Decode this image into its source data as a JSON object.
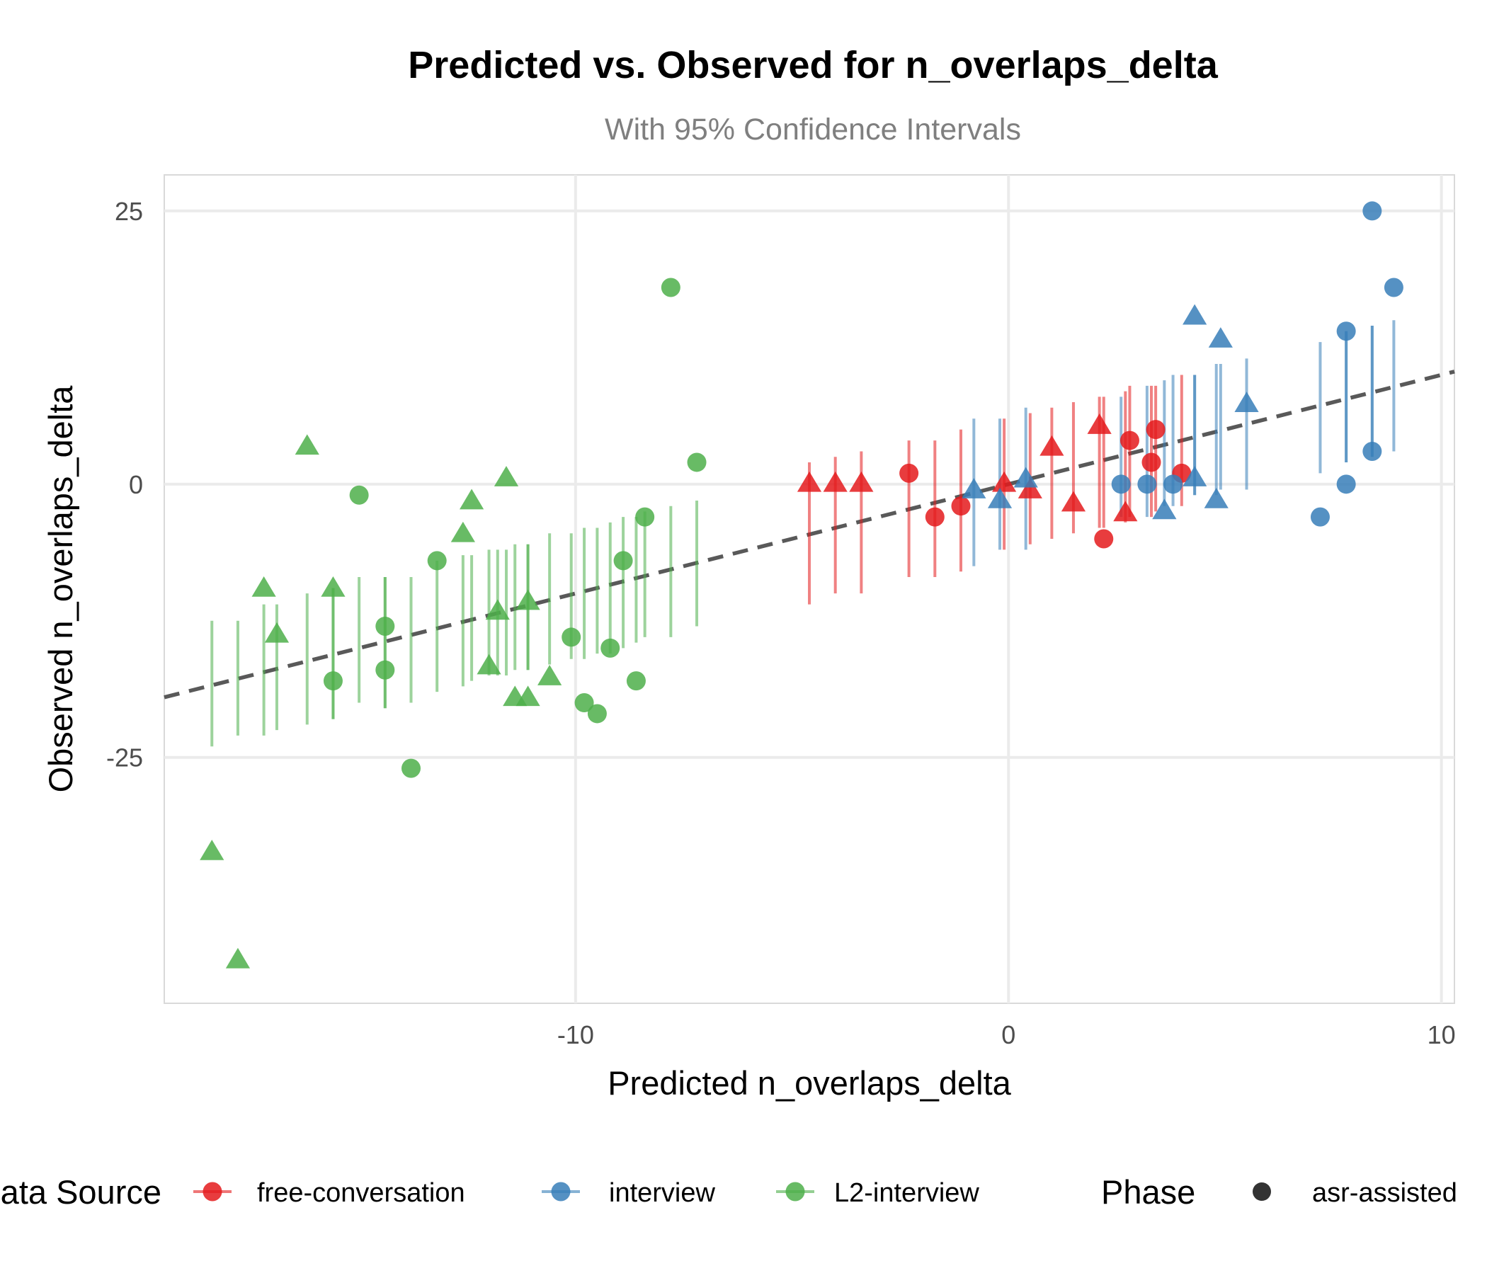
{
  "chart_data": {
    "type": "scatter",
    "title": "Predicted vs. Observed for n_overlaps_delta",
    "subtitle": "With 95% Confidence Intervals",
    "xlabel": "Predicted n_overlaps_delta",
    "ylabel": "Observed n_overlaps_delta",
    "xlim": [
      -19.5,
      10.3
    ],
    "ylim": [
      -47.5,
      28.3
    ],
    "x_ticks": [
      {
        "value": -10,
        "label": "-10"
      },
      {
        "value": 0,
        "label": "0"
      },
      {
        "value": 10,
        "label": "10"
      }
    ],
    "y_ticks": [
      {
        "value": 25,
        "label": "25"
      },
      {
        "value": 0,
        "label": "0"
      },
      {
        "value": -25,
        "label": "-25"
      }
    ],
    "grid": true,
    "reference_line": {
      "style": "dashed",
      "color": "#595959",
      "from": [
        -19.5,
        -19.5
      ],
      "to": [
        10.3,
        10.3
      ]
    },
    "legend": {
      "position": "bottom",
      "groups": [
        {
          "title": "Data Source",
          "items": [
            {
              "label": "free-conversation",
              "color": "#E41A1C"
            },
            {
              "label": "interview",
              "color": "#377EB8"
            },
            {
              "label": "L2-interview",
              "color": "#4DAF4A"
            }
          ]
        },
        {
          "title": "Phase",
          "items": [
            {
              "label": "asr-assisted",
              "color": "#333333",
              "shape": "circle"
            }
          ]
        }
      ]
    },
    "series": [
      {
        "name": "free-conversation",
        "color": "#E41A1C",
        "points": [
          {
            "x": -4.6,
            "y": 0,
            "lo": -11,
            "hi": 2,
            "shape": "triangle"
          },
          {
            "x": -4.0,
            "y": 0,
            "lo": -10,
            "hi": 2.5,
            "shape": "triangle"
          },
          {
            "x": -3.4,
            "y": 0,
            "lo": -10,
            "hi": 3,
            "shape": "triangle"
          },
          {
            "x": -2.3,
            "y": 1,
            "lo": -8.5,
            "hi": 4,
            "shape": "circle"
          },
          {
            "x": -1.7,
            "y": -3,
            "lo": -8.5,
            "hi": 4,
            "shape": "circle"
          },
          {
            "x": -1.1,
            "y": -2,
            "lo": -8,
            "hi": 5,
            "shape": "circle"
          },
          {
            "x": -0.1,
            "y": 0,
            "lo": -6,
            "hi": 6,
            "shape": "triangle"
          },
          {
            "x": 0.5,
            "y": -0.6,
            "lo": -5.5,
            "hi": 6.5,
            "shape": "triangle"
          },
          {
            "x": 1.0,
            "y": 3.3,
            "lo": -5,
            "hi": 7,
            "shape": "triangle"
          },
          {
            "x": 1.5,
            "y": -1.8,
            "lo": -4.5,
            "hi": 7.5,
            "shape": "triangle"
          },
          {
            "x": 2.1,
            "y": 5.3,
            "lo": -4,
            "hi": 8,
            "shape": "triangle"
          },
          {
            "x": 2.2,
            "y": -5,
            "lo": -4,
            "hi": 8,
            "shape": "circle"
          },
          {
            "x": 2.7,
            "y": -2.7,
            "lo": -3.5,
            "hi": 8.5,
            "shape": "triangle"
          },
          {
            "x": 2.8,
            "y": 4,
            "lo": -3,
            "hi": 9,
            "shape": "circle"
          },
          {
            "x": 3.3,
            "y": 2,
            "lo": -3,
            "hi": 9,
            "shape": "circle"
          },
          {
            "x": 3.4,
            "y": 5,
            "lo": -2.5,
            "hi": 9,
            "shape": "circle"
          },
          {
            "x": 4.0,
            "y": 1,
            "lo": -2,
            "hi": 10,
            "shape": "circle"
          }
        ]
      },
      {
        "name": "interview",
        "color": "#377EB8",
        "points": [
          {
            "x": -0.8,
            "y": -0.6,
            "lo": -7.5,
            "hi": 6,
            "shape": "triangle"
          },
          {
            "x": -0.2,
            "y": -1.5,
            "lo": -6,
            "hi": 6,
            "shape": "triangle"
          },
          {
            "x": 0.4,
            "y": 0.4,
            "lo": -6,
            "hi": 7,
            "shape": "triangle"
          },
          {
            "x": 2.6,
            "y": 0,
            "lo": -3,
            "hi": 8,
            "shape": "circle"
          },
          {
            "x": 3.2,
            "y": 0,
            "lo": -3,
            "hi": 9,
            "shape": "circle"
          },
          {
            "x": 3.6,
            "y": -2.5,
            "lo": -2,
            "hi": 9.5,
            "shape": "triangle"
          },
          {
            "x": 3.8,
            "y": 0,
            "lo": -2,
            "hi": 10,
            "shape": "circle"
          },
          {
            "x": 4.3,
            "y": 15.3,
            "lo": -1,
            "hi": 10,
            "shape": "triangle"
          },
          {
            "x": 4.3,
            "y": 0.5,
            "lo": -1,
            "hi": 10,
            "shape": "triangle"
          },
          {
            "x": 4.8,
            "y": -1.5,
            "lo": -1,
            "hi": 11,
            "shape": "triangle"
          },
          {
            "x": 4.9,
            "y": 13.2,
            "lo": -0.5,
            "hi": 11,
            "shape": "triangle"
          },
          {
            "x": 5.5,
            "y": 7.3,
            "lo": -0.5,
            "hi": 11.5,
            "shape": "triangle"
          },
          {
            "x": 7.2,
            "y": -3,
            "lo": 1,
            "hi": 13,
            "shape": "circle"
          },
          {
            "x": 7.8,
            "y": 14,
            "lo": 2,
            "hi": 14,
            "shape": "circle"
          },
          {
            "x": 7.8,
            "y": 0,
            "lo": 2,
            "hi": 14,
            "shape": "circle"
          },
          {
            "x": 8.4,
            "y": 25,
            "lo": 2.5,
            "hi": 14.5,
            "shape": "circle"
          },
          {
            "x": 8.4,
            "y": 3,
            "lo": 2.5,
            "hi": 14.5,
            "shape": "circle"
          },
          {
            "x": 8.9,
            "y": 18,
            "lo": 3,
            "hi": 15,
            "shape": "circle"
          }
        ]
      },
      {
        "name": "L2-interview",
        "color": "#4DAF4A",
        "points": [
          {
            "x": -18.4,
            "y": -33.7,
            "lo": -24,
            "hi": -12.5,
            "shape": "triangle"
          },
          {
            "x": -17.8,
            "y": -43.6,
            "lo": -23,
            "hi": -12.5,
            "shape": "triangle"
          },
          {
            "x": -17.2,
            "y": -9.6,
            "lo": -23,
            "hi": -11,
            "shape": "triangle"
          },
          {
            "x": -16.9,
            "y": -13.8,
            "lo": -22.5,
            "hi": -11,
            "shape": "triangle"
          },
          {
            "x": -16.2,
            "y": 3.4,
            "lo": -22,
            "hi": -10,
            "shape": "triangle"
          },
          {
            "x": -15.6,
            "y": -18,
            "lo": -21.5,
            "hi": -9.5,
            "shape": "circle"
          },
          {
            "x": -15.6,
            "y": -9.6,
            "lo": -21.5,
            "hi": -9.5,
            "shape": "triangle"
          },
          {
            "x": -15.0,
            "y": -1,
            "lo": -20,
            "hi": -8.5,
            "shape": "circle"
          },
          {
            "x": -14.4,
            "y": -13,
            "lo": -20.5,
            "hi": -8.5,
            "shape": "circle"
          },
          {
            "x": -14.4,
            "y": -17,
            "lo": -20.5,
            "hi": -8.5,
            "shape": "circle"
          },
          {
            "x": -13.8,
            "y": -26,
            "lo": -20,
            "hi": -8.5,
            "shape": "circle"
          },
          {
            "x": -13.2,
            "y": -7,
            "lo": -19,
            "hi": -7,
            "shape": "circle"
          },
          {
            "x": -12.6,
            "y": -4.6,
            "lo": -18.5,
            "hi": -6.5,
            "shape": "triangle"
          },
          {
            "x": -12.4,
            "y": -1.6,
            "lo": -18,
            "hi": -6.5,
            "shape": "triangle"
          },
          {
            "x": -12.0,
            "y": -16.7,
            "lo": -17.5,
            "hi": -6,
            "shape": "triangle"
          },
          {
            "x": -11.8,
            "y": -11.7,
            "lo": -17.5,
            "hi": -6,
            "shape": "triangle"
          },
          {
            "x": -11.6,
            "y": 0.5,
            "lo": -17.5,
            "hi": -6,
            "shape": "triangle"
          },
          {
            "x": -11.4,
            "y": -19.6,
            "lo": -17,
            "hi": -5.5,
            "shape": "triangle"
          },
          {
            "x": -11.1,
            "y": -19.6,
            "lo": -17,
            "hi": -5.5,
            "shape": "triangle"
          },
          {
            "x": -11.1,
            "y": -10.8,
            "lo": -17,
            "hi": -5.5,
            "shape": "triangle"
          },
          {
            "x": -10.6,
            "y": -17.7,
            "lo": -16.5,
            "hi": -4.5,
            "shape": "triangle"
          },
          {
            "x": -10.1,
            "y": -14,
            "lo": -16,
            "hi": -4.5,
            "shape": "circle"
          },
          {
            "x": -9.8,
            "y": -20,
            "lo": -16,
            "hi": -4,
            "shape": "circle"
          },
          {
            "x": -9.5,
            "y": -21,
            "lo": -15.5,
            "hi": -4,
            "shape": "circle"
          },
          {
            "x": -9.2,
            "y": -15,
            "lo": -15.5,
            "hi": -3.5,
            "shape": "circle"
          },
          {
            "x": -8.9,
            "y": -7,
            "lo": -15,
            "hi": -3,
            "shape": "circle"
          },
          {
            "x": -8.6,
            "y": -18,
            "lo": -14.5,
            "hi": -3,
            "shape": "circle"
          },
          {
            "x": -8.4,
            "y": -3,
            "lo": -14,
            "hi": -2.5,
            "shape": "circle"
          },
          {
            "x": -7.8,
            "y": 18,
            "lo": -14,
            "hi": -2,
            "shape": "circle"
          },
          {
            "x": -7.2,
            "y": 2,
            "lo": -13,
            "hi": -1.5,
            "shape": "circle"
          }
        ]
      }
    ]
  }
}
